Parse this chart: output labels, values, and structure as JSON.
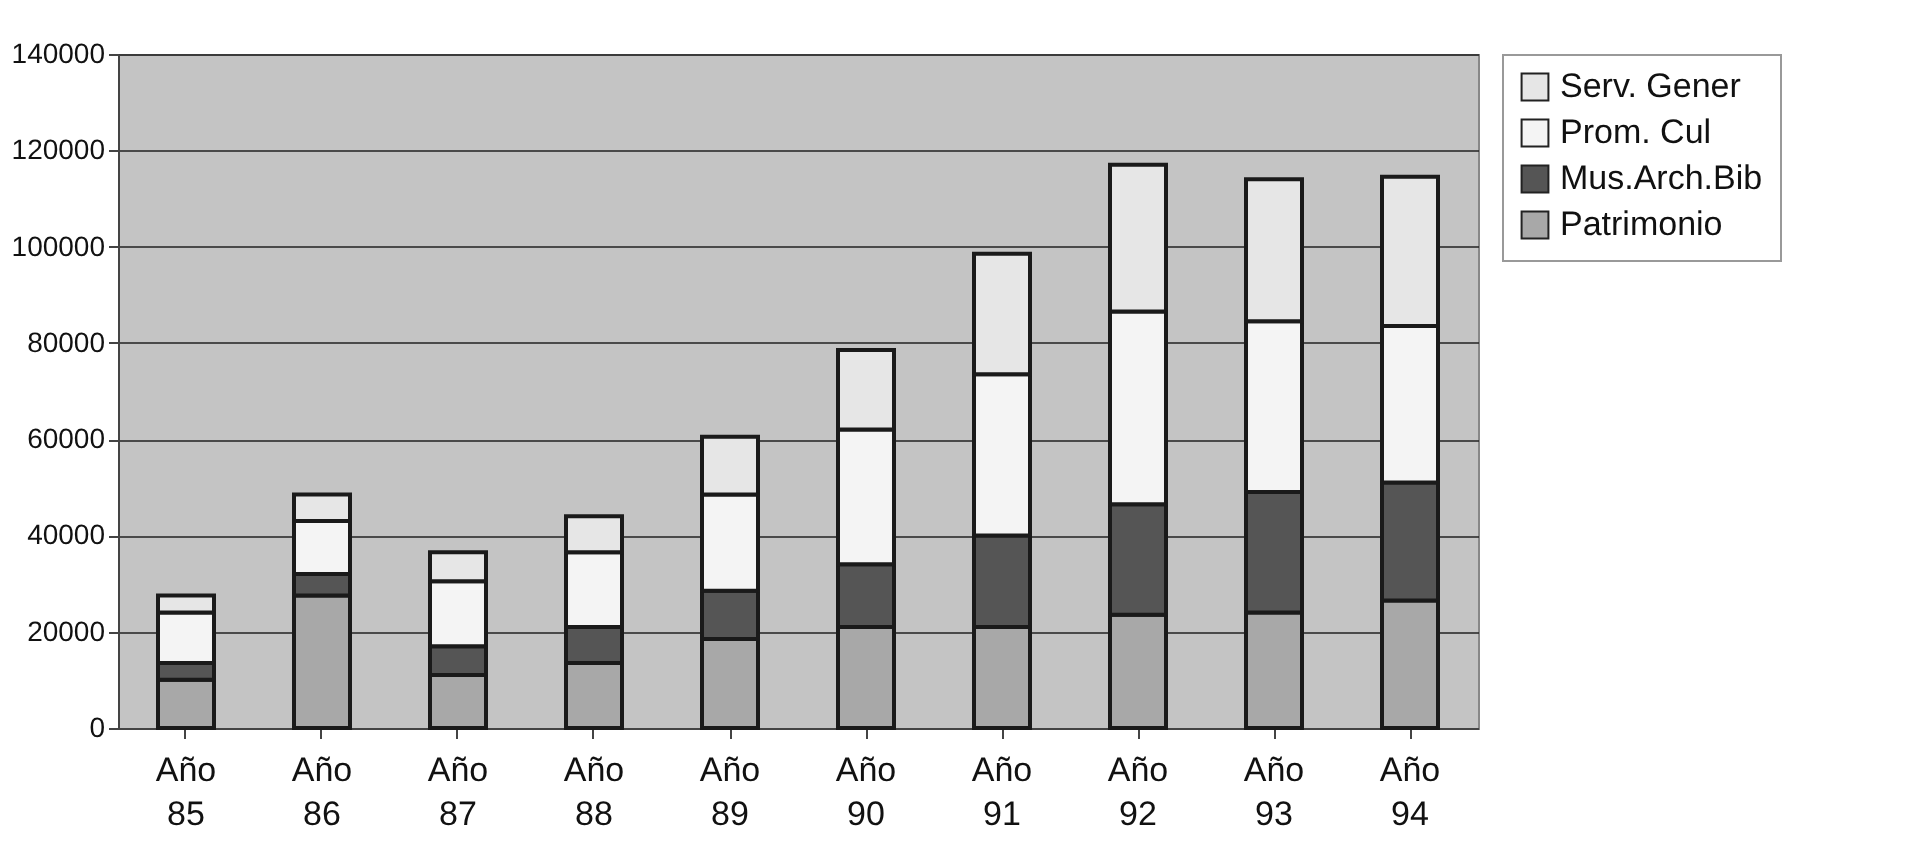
{
  "chart_data": {
    "type": "bar",
    "stacked": true,
    "categories": [
      "Año 85",
      "Año 86",
      "Año 87",
      "Año 88",
      "Año 89",
      "Año 90",
      "Año 91",
      "Año 92",
      "Año 93",
      "Año 94"
    ],
    "series": [
      {
        "name": "Patrimonio",
        "color": "#a8a8a8",
        "values": [
          10000,
          27500,
          11000,
          13500,
          18500,
          21000,
          21000,
          23500,
          24000,
          26500
        ]
      },
      {
        "name": "Mus.Arch.Bib",
        "color": "#555555",
        "values": [
          3500,
          4500,
          6000,
          7500,
          10000,
          13000,
          19000,
          23000,
          25000,
          24500
        ]
      },
      {
        "name": "Prom. Cul",
        "color": "#f4f4f4",
        "values": [
          10500,
          11000,
          13500,
          15500,
          20000,
          28000,
          33500,
          40000,
          35500,
          32500
        ]
      },
      {
        "name": "Serv. Gener",
        "color": "#e6e6e6",
        "values": [
          3500,
          5500,
          6000,
          7500,
          12000,
          16500,
          25000,
          30500,
          29500,
          31000
        ]
      }
    ],
    "ylim": [
      0,
      140000
    ],
    "yticks": [
      0,
      20000,
      40000,
      60000,
      80000,
      100000,
      120000,
      140000
    ],
    "grid": "y",
    "legend": "right"
  }
}
